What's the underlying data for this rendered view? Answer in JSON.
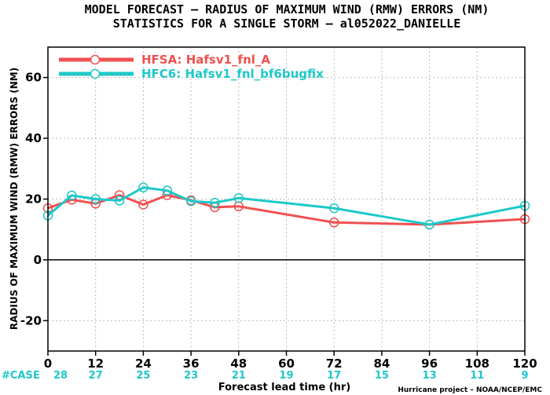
{
  "chart_data": {
    "type": "line",
    "title_line1": "MODEL FORECAST – RADIUS OF MAXIMUM WIND (RMW) ERRORS (NM)",
    "title_line2": "STATISTICS FOR A SINGLE STORM – al052022_DANIELLE",
    "ylabel": "RADIUS OF MAXIMUM WIND (RMW) ERRORS (NM)",
    "xlabel": "Forecast lead time (hr)",
    "credit": "Hurricane project – NOAA/NCEP/EMC",
    "xlim": [
      0,
      120
    ],
    "ylim": [
      -30,
      70
    ],
    "xticks": [
      0,
      12,
      24,
      36,
      48,
      60,
      72,
      84,
      96,
      108,
      120
    ],
    "yticks": [
      -20,
      0,
      20,
      40,
      60
    ],
    "grid": true,
    "legend_position": "top-left",
    "series": [
      {
        "name": "HFSA: Hafsv1_fnl_A",
        "color": "#f05050",
        "x": [
          0,
          6,
          12,
          18,
          24,
          30,
          36,
          42,
          48,
          72,
          96,
          120
        ],
        "y": [
          17,
          19.8,
          18.5,
          21.3,
          18.2,
          21.3,
          19.6,
          17.3,
          17.6,
          12.3,
          11.6,
          13.4
        ]
      },
      {
        "name": "HFC6: Hafsv1_fnl_bf6bugfix",
        "color": "#1ec8c8",
        "x": [
          0,
          6,
          12,
          18,
          24,
          30,
          36,
          42,
          48,
          72,
          96,
          120
        ],
        "y": [
          14.6,
          21.2,
          20,
          19.5,
          23.8,
          22.8,
          19.3,
          18.8,
          20.3,
          17,
          11.6,
          17.8
        ]
      }
    ],
    "case_label": "#CASE",
    "case_counts": [
      "28",
      "27",
      "25",
      "23",
      "21",
      "19",
      "17",
      "15",
      "13",
      "11",
      "9"
    ]
  }
}
